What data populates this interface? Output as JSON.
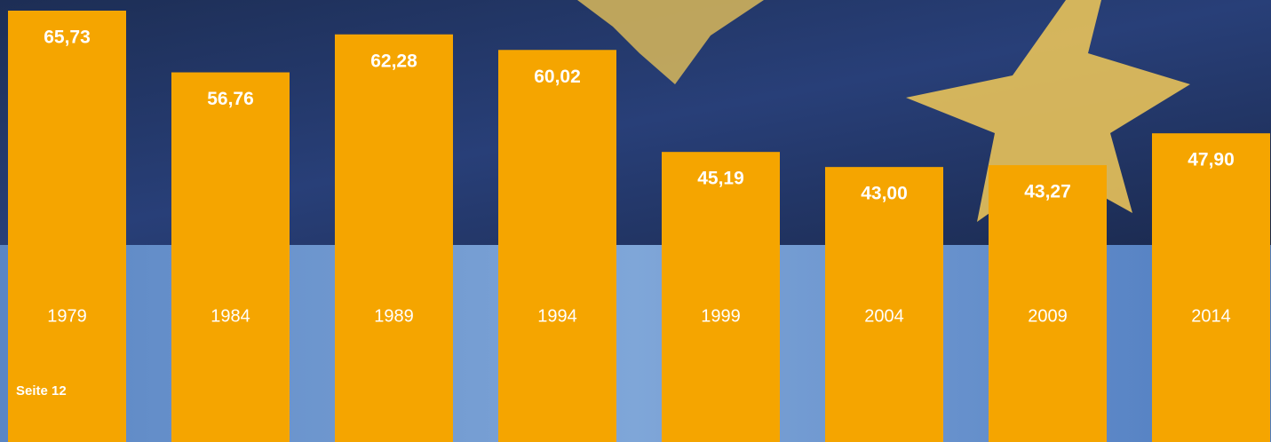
{
  "chart_data": {
    "type": "bar",
    "categories": [
      "1979",
      "1984",
      "1989",
      "1994",
      "1999",
      "2004",
      "2009",
      "2014"
    ],
    "values": [
      65.73,
      56.76,
      62.28,
      60.02,
      45.19,
      43.0,
      43.27,
      47.9
    ],
    "value_labels": [
      "65,73",
      "56,76",
      "62,28",
      "60,02",
      "45,19",
      "43,00",
      "43,27",
      "47,90"
    ],
    "color": "#f5a500"
  },
  "footer": {
    "page": "Seite 12"
  }
}
